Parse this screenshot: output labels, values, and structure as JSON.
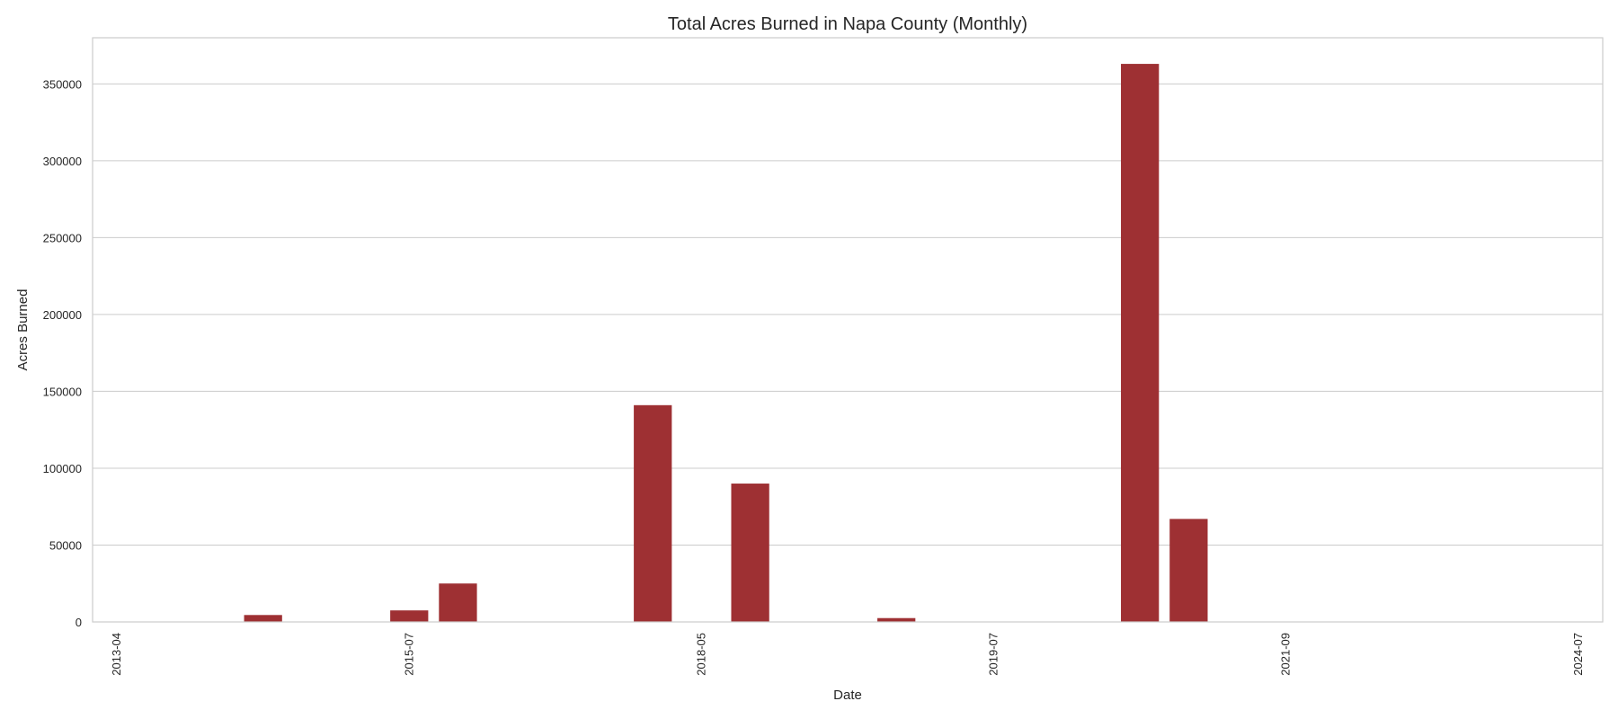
{
  "chart_data": {
    "type": "bar",
    "title": "Total Acres Burned in Napa County (Monthly)",
    "xlabel": "Date",
    "ylabel": "Acres Burned",
    "ylim": [
      0,
      380000
    ],
    "yticks": [
      0,
      50000,
      100000,
      150000,
      200000,
      250000,
      300000,
      350000
    ],
    "xtick_labels": [
      "2013-04",
      "2015-07",
      "2018-05",
      "2019-07",
      "2021-09",
      "2024-07"
    ],
    "xtick_positions": [
      0,
      6,
      12,
      18,
      24,
      30
    ],
    "x_index_range": [
      -0.5,
      30.5
    ],
    "grid": true,
    "bar_color": "#9e3033",
    "bars": [
      {
        "index": 3,
        "value": 4500
      },
      {
        "index": 6,
        "value": 7500
      },
      {
        "index": 7,
        "value": 25000
      },
      {
        "index": 11,
        "value": 141000
      },
      {
        "index": 13,
        "value": 90000
      },
      {
        "index": 16,
        "value": 2500
      },
      {
        "index": 21,
        "value": 363000
      },
      {
        "index": 22,
        "value": 67000
      }
    ]
  }
}
